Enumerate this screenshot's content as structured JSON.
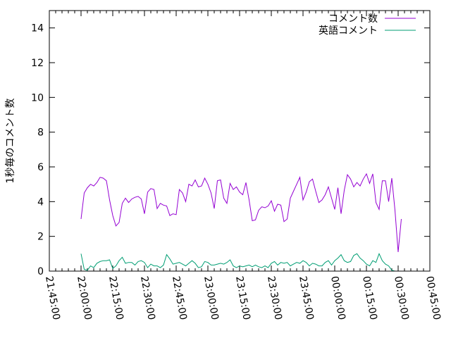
{
  "chart_data": {
    "type": "line",
    "ylabel": "1秒毎のコメント数",
    "ylim": [
      0,
      15
    ],
    "yticks": [
      0,
      2,
      4,
      6,
      8,
      10,
      12,
      14
    ],
    "xlim": [
      "21:45:00",
      "00:45:00"
    ],
    "xticks": [
      "21:45:00",
      "22:00:00",
      "22:15:00",
      "22:30:00",
      "22:45:00",
      "23:00:00",
      "23:15:00",
      "23:30:00",
      "23:45:00",
      "00:00:00",
      "00:15:00",
      "00:30:00",
      "00:45:00"
    ],
    "grid": false,
    "legend_position": "top-right",
    "colors": {
      "comments": "#9400d3",
      "english_comments": "#009e73"
    },
    "sample_interval_seconds": 90,
    "series": [
      {
        "name": "コメント数",
        "color": "#9400d3",
        "x_start": "22:00:00",
        "values": [
          3.0,
          4.5,
          4.8,
          5.0,
          4.9,
          5.1,
          5.4,
          5.35,
          5.2,
          4.1,
          3.2,
          2.6,
          2.8,
          3.9,
          4.2,
          3.95,
          4.15,
          4.25,
          4.3,
          4.15,
          3.3,
          4.55,
          4.75,
          4.7,
          3.6,
          3.9,
          3.8,
          3.75,
          3.2,
          3.3,
          3.25,
          4.7,
          4.5,
          4.0,
          5.0,
          4.9,
          5.25,
          4.85,
          4.9,
          5.35,
          5.0,
          4.5,
          3.6,
          5.2,
          5.25,
          4.2,
          3.9,
          5.05,
          4.7,
          4.85,
          4.55,
          4.4,
          5.1,
          4.1,
          2.9,
          2.95,
          3.5,
          3.7,
          3.65,
          3.75,
          4.05,
          3.45,
          3.85,
          3.8,
          2.85,
          3.0,
          4.2,
          4.6,
          5.0,
          5.4,
          4.1,
          4.55,
          5.15,
          5.3,
          4.6,
          3.95,
          4.1,
          4.4,
          4.85,
          4.2,
          3.55,
          4.8,
          3.3,
          4.65,
          5.55,
          5.3,
          4.85,
          5.1,
          4.9,
          5.3,
          5.6,
          5.05,
          5.6,
          3.95,
          3.55,
          5.2,
          5.2,
          4.0,
          5.35,
          3.5,
          1.1,
          3.0
        ]
      },
      {
        "name": "英語コメント",
        "color": "#009e73",
        "x_start": "22:00:00",
        "values": [
          1.0,
          0.1,
          0.05,
          0.3,
          0.2,
          0.45,
          0.55,
          0.6,
          0.6,
          0.65,
          0.15,
          0.3,
          0.6,
          0.8,
          0.45,
          0.5,
          0.5,
          0.35,
          0.55,
          0.6,
          0.5,
          0.2,
          0.4,
          0.3,
          0.3,
          0.2,
          0.35,
          0.95,
          0.7,
          0.4,
          0.45,
          0.5,
          0.4,
          0.3,
          0.45,
          0.6,
          0.45,
          0.2,
          0.25,
          0.55,
          0.5,
          0.35,
          0.35,
          0.4,
          0.45,
          0.4,
          0.5,
          0.65,
          0.3,
          0.2,
          0.3,
          0.25,
          0.3,
          0.35,
          0.25,
          0.35,
          0.25,
          0.2,
          0.3,
          0.2,
          0.45,
          0.55,
          0.35,
          0.5,
          0.45,
          0.5,
          0.3,
          0.4,
          0.5,
          0.45,
          0.6,
          0.5,
          0.3,
          0.45,
          0.4,
          0.3,
          0.3,
          0.5,
          0.6,
          0.35,
          0.6,
          0.75,
          0.95,
          0.6,
          0.5,
          0.55,
          0.9,
          1.0,
          0.75,
          0.6,
          0.4,
          0.3,
          0.6,
          0.5,
          1.0,
          0.6,
          0.4,
          0.3,
          0.05,
          0.0
        ]
      }
    ]
  }
}
